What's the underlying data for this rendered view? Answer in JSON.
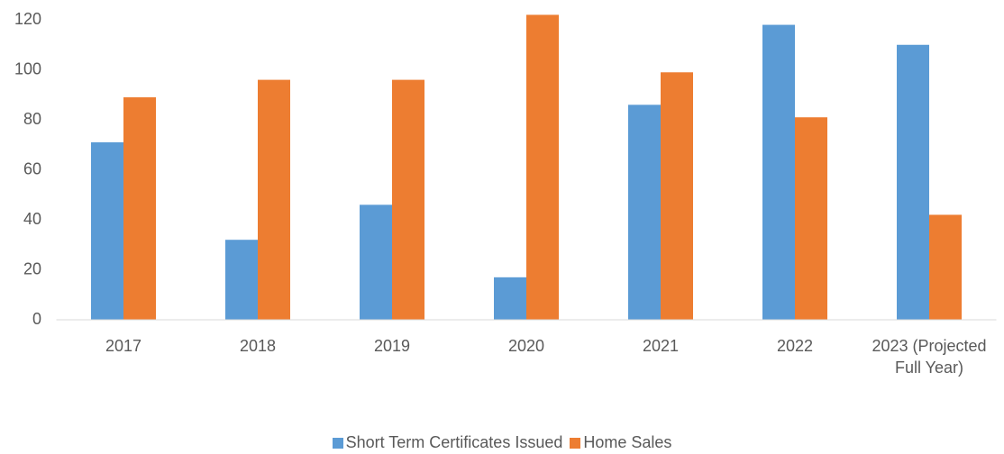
{
  "chart_data": {
    "type": "bar",
    "categories": [
      "2017",
      "2018",
      "2019",
      "2020",
      "2021",
      "2022",
      "2023 (Projected Full Year)"
    ],
    "series": [
      {
        "name": "Short Term Certificates Issued",
        "color": "#5b9bd5",
        "values": [
          71,
          32,
          46,
          17,
          86,
          118,
          110
        ]
      },
      {
        "name": "Home Sales",
        "color": "#ed7d31",
        "values": [
          89,
          96,
          96,
          122,
          99,
          81,
          42
        ]
      }
    ],
    "ylim": [
      0,
      120
    ],
    "yticks": [
      0,
      20,
      40,
      60,
      80,
      100,
      120
    ],
    "grid": false,
    "legend": "bottom"
  }
}
